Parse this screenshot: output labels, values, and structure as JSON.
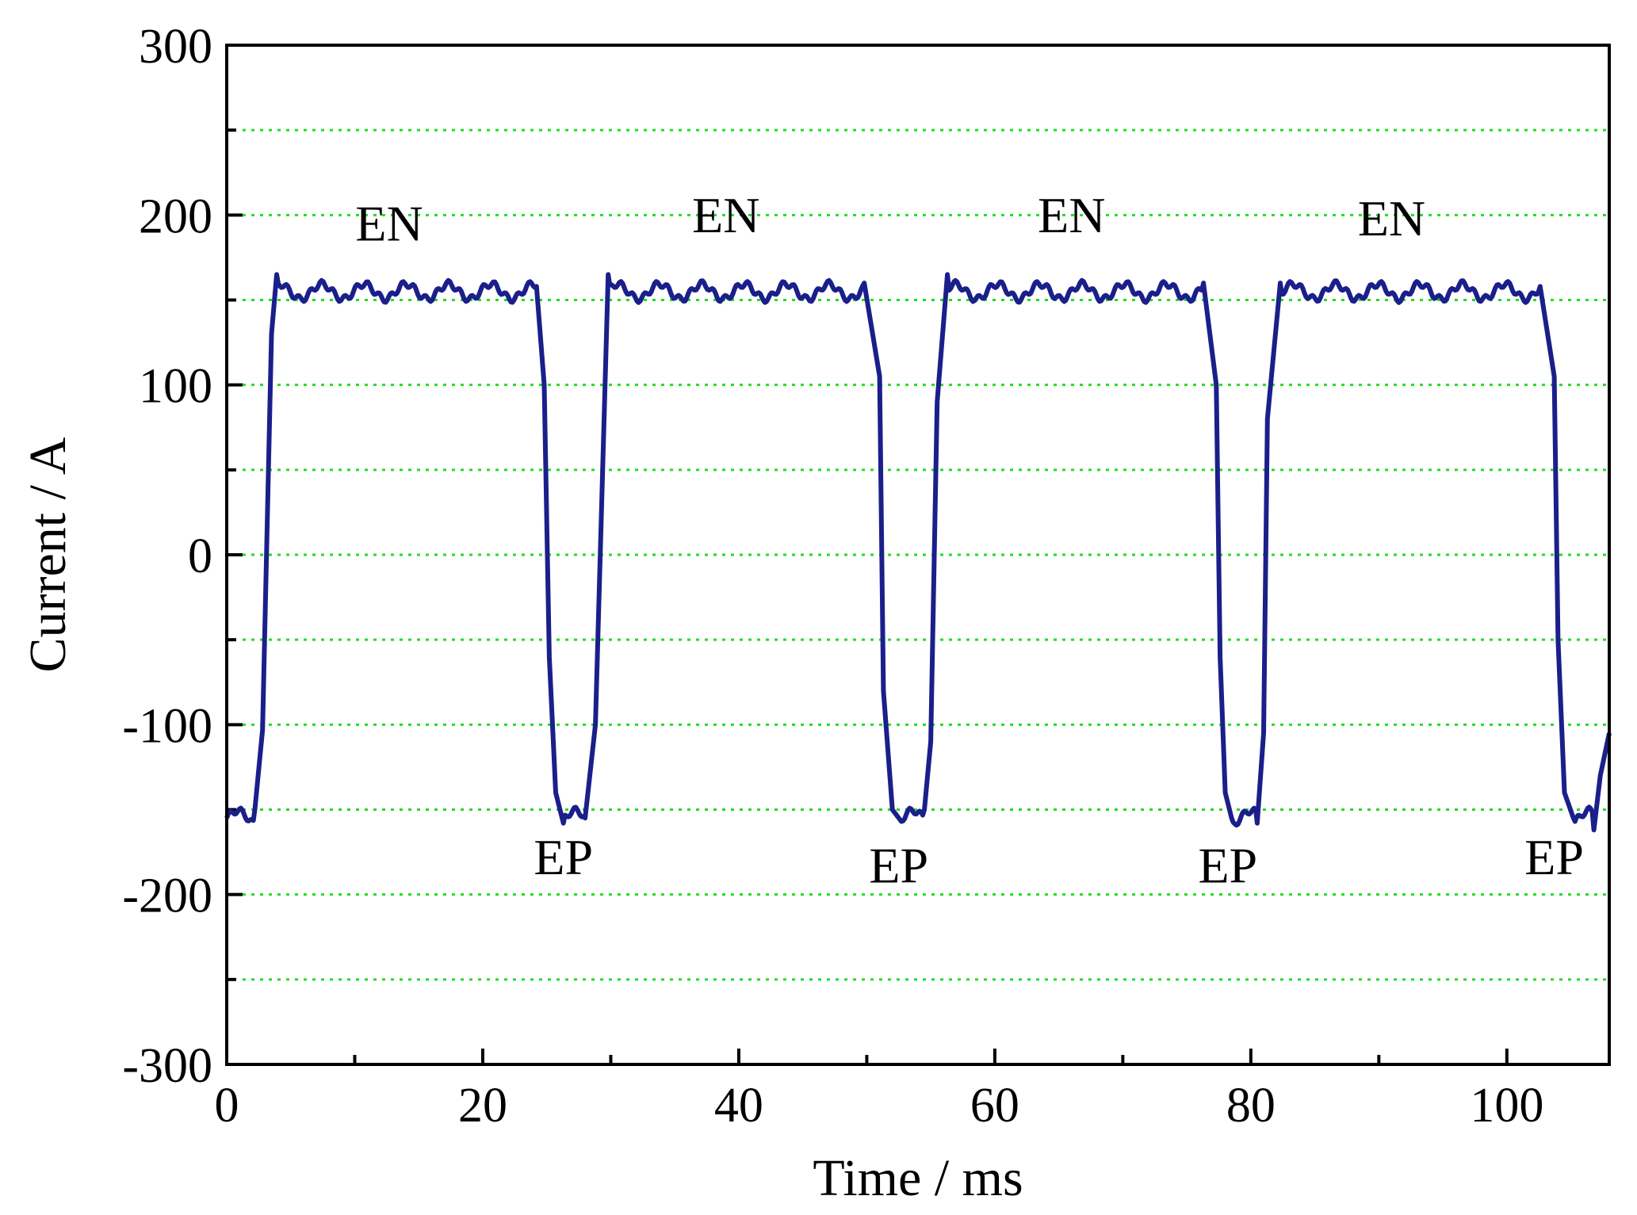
{
  "chart_data": {
    "type": "line",
    "xlabel": "Time / ms",
    "ylabel": "Current / A",
    "xlim": [
      0,
      108
    ],
    "ylim": [
      -300,
      300
    ],
    "x_ticks": [
      0,
      20,
      40,
      60,
      80,
      100
    ],
    "x_tick_labels": [
      "0",
      "20",
      "40",
      "60",
      "80",
      "100"
    ],
    "x_minor_ticks": [
      10,
      30,
      50,
      70,
      90
    ],
    "y_ticks": [
      -300,
      -200,
      -100,
      0,
      100,
      200,
      300
    ],
    "y_tick_labels": [
      "-300",
      "-200",
      "-100",
      "0",
      "100",
      "200",
      "300"
    ],
    "y_minor_ticks": [
      -250,
      -150,
      -50,
      50,
      150,
      250
    ],
    "grid": {
      "y": true,
      "x": false,
      "style": "dotted",
      "color": "#22dd22"
    },
    "line_color": "#1a1f8a",
    "series": [
      {
        "points": [
          [
            0,
            -155
          ],
          [
            2.2,
            -150
          ],
          [
            2.8,
            -103
          ],
          [
            3.5,
            130
          ],
          [
            3.9,
            165
          ],
          [
            24.2,
            158
          ],
          [
            24.8,
            100
          ],
          [
            25.2,
            -60
          ],
          [
            25.7,
            -140
          ],
          [
            26.3,
            -158
          ],
          [
            28.0,
            -155
          ],
          [
            28.8,
            -100
          ],
          [
            29.8,
            165
          ],
          [
            49.8,
            160
          ],
          [
            51.0,
            105
          ],
          [
            51.3,
            -80
          ],
          [
            52.0,
            -150
          ],
          [
            52.7,
            -157
          ],
          [
            54.5,
            -150
          ],
          [
            55.0,
            -110
          ],
          [
            55.5,
            90
          ],
          [
            56.3,
            165
          ],
          [
            76.3,
            160
          ],
          [
            77.3,
            100
          ],
          [
            77.6,
            -60
          ],
          [
            78.0,
            -140
          ],
          [
            78.5,
            -155
          ],
          [
            80.5,
            -158
          ],
          [
            81.0,
            -105
          ],
          [
            81.3,
            80
          ],
          [
            82.3,
            160
          ],
          [
            102.6,
            158
          ],
          [
            103.7,
            105
          ],
          [
            104.0,
            -50
          ],
          [
            104.5,
            -140
          ],
          [
            105.2,
            -155
          ],
          [
            106.8,
            -162
          ],
          [
            107.3,
            -130
          ],
          [
            108,
            -105
          ]
        ]
      }
    ],
    "annotations": [
      {
        "text": "EN",
        "x": 12.7,
        "y": 185
      },
      {
        "text": "EN",
        "x": 39.0,
        "y": 190
      },
      {
        "text": "EN",
        "x": 66.0,
        "y": 190
      },
      {
        "text": "EN",
        "x": 91.0,
        "y": 188
      },
      {
        "text": "EP",
        "x": 26.3,
        "y": -188
      },
      {
        "text": "EP",
        "x": 52.5,
        "y": -193
      },
      {
        "text": "EP",
        "x": 78.2,
        "y": -193
      },
      {
        "text": "EP",
        "x": 103.7,
        "y": -188
      }
    ]
  }
}
